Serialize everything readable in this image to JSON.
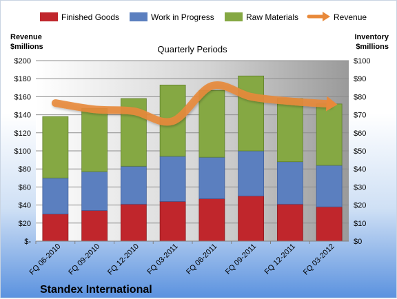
{
  "chart_data": {
    "type": "bar",
    "stacked": true,
    "title": "Quarterly Periods",
    "company": "Standex International",
    "left_axis": {
      "title_line1": "Revenue",
      "title_line2": "$millions",
      "ylim": [
        0,
        200
      ],
      "step": 20,
      "tick_labels": [
        "$-",
        "$20",
        "$40",
        "$60",
        "$80",
        "$100",
        "$120",
        "$140",
        "$160",
        "$180",
        "$200"
      ]
    },
    "right_axis": {
      "title_line1": "Inventory",
      "title_line2": "$millions",
      "ylim": [
        0,
        100
      ],
      "step": 10,
      "tick_labels": [
        "$0",
        "$10",
        "$20",
        "$30",
        "$40",
        "$50",
        "$60",
        "$70",
        "$80",
        "$90",
        "$100"
      ]
    },
    "categories": [
      "FQ 06-2010",
      "FQ 09-2010",
      "FQ 12-2010",
      "FQ 03-2011",
      "FQ 06-2011",
      "FQ 09-2011",
      "FQ 12-2011",
      "FQ 03-2012"
    ],
    "series": [
      {
        "name": "Finished Goods",
        "axis": "right",
        "color": "#c0262c",
        "values": [
          15,
          17,
          20.5,
          22,
          23.5,
          25,
          20.5,
          19
        ]
      },
      {
        "name": "Work in Progress",
        "axis": "right",
        "color": "#5b7fbf",
        "values": [
          20,
          21.5,
          21,
          25,
          23,
          25,
          23.5,
          23
        ]
      },
      {
        "name": "Raw Materials",
        "axis": "right",
        "color": "#85a843",
        "values": [
          34,
          35,
          37.5,
          39.5,
          37,
          41.5,
          35,
          34
        ]
      },
      {
        "name": "Revenue",
        "axis": "left",
        "type": "line",
        "color": "#e8893a",
        "values": [
          153,
          146,
          144,
          133,
          172,
          160,
          155,
          152
        ]
      }
    ],
    "grid": true,
    "legend": "top"
  }
}
